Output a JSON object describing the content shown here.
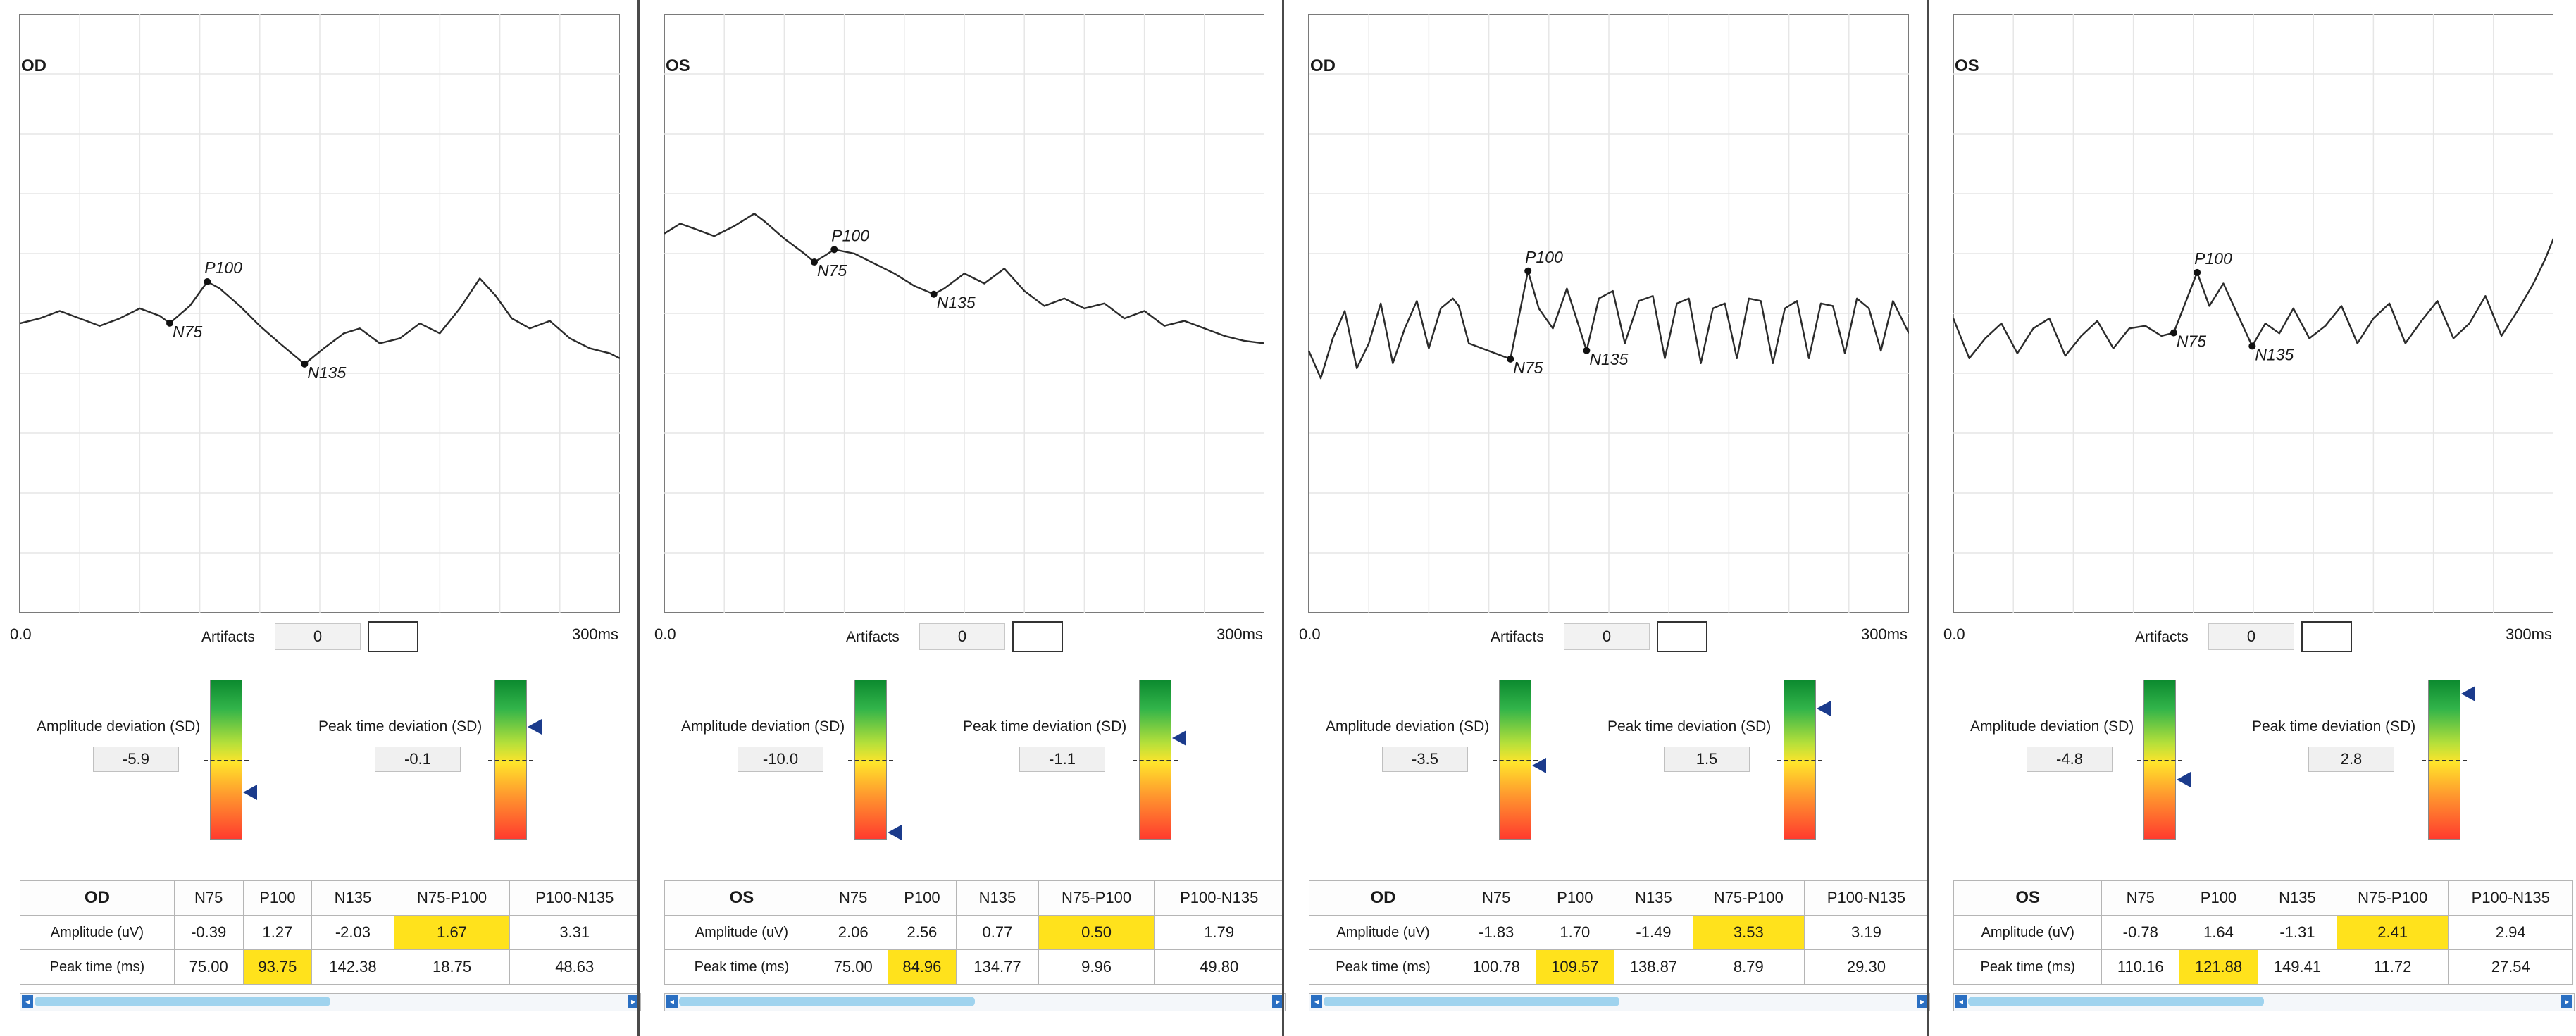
{
  "chart_data": [
    {
      "type": "line",
      "eye": "OD",
      "x_min_label": "0.0",
      "x_max_label": "300ms",
      "xlim": [
        0,
        300
      ],
      "grid": true,
      "wave": [
        [
          0,
          -0.4
        ],
        [
          10,
          -0.2
        ],
        [
          20,
          0.1
        ],
        [
          30,
          -0.2
        ],
        [
          40,
          -0.5
        ],
        [
          50,
          -0.2
        ],
        [
          60,
          0.2
        ],
        [
          70,
          -0.1
        ],
        [
          75,
          -0.39
        ],
        [
          85,
          0.3
        ],
        [
          93.75,
          1.27
        ],
        [
          100,
          1.0
        ],
        [
          110,
          0.3
        ],
        [
          120,
          -0.5
        ],
        [
          130,
          -1.2
        ],
        [
          142.38,
          -2.03
        ],
        [
          152,
          -1.4
        ],
        [
          162,
          -0.8
        ],
        [
          170,
          -0.6
        ],
        [
          180,
          -1.2
        ],
        [
          190,
          -1.0
        ],
        [
          200,
          -0.4
        ],
        [
          210,
          -0.8
        ],
        [
          220,
          0.2
        ],
        [
          230,
          1.4
        ],
        [
          238,
          0.7
        ],
        [
          246,
          -0.2
        ],
        [
          255,
          -0.6
        ],
        [
          265,
          -0.3
        ],
        [
          275,
          -1.0
        ],
        [
          285,
          -1.4
        ],
        [
          295,
          -1.6
        ],
        [
          300,
          -1.8
        ]
      ],
      "markers": [
        {
          "label": "N75",
          "x": 75,
          "y": -0.39
        },
        {
          "label": "P100",
          "x": 93.75,
          "y": 1.27
        },
        {
          "label": "N135",
          "x": 142.38,
          "y": -2.03
        }
      ],
      "artifacts_label": "Artifacts",
      "artifacts_value": "0",
      "amplitude_dev_label": "Amplitude deviation (SD)",
      "amplitude_dev_value": "-5.9",
      "amplitude_dev_level": -5.9,
      "peak_dev_label": "Peak time deviation (SD)",
      "peak_dev_value": "-0.1",
      "peak_dev_level": -0.1,
      "table": {
        "headers": [
          "OD",
          "N75",
          "P100",
          "N135",
          "N75-P100",
          "P100-N135"
        ],
        "rows": [
          {
            "label": "Amplitude (uV)",
            "cells": [
              "-0.39",
              "1.27",
              "-2.03",
              "1.67",
              "3.31"
            ],
            "highlight": [
              3
            ]
          },
          {
            "label": "Peak time (ms)",
            "cells": [
              "75.00",
              "93.75",
              "142.38",
              "18.75",
              "48.63"
            ],
            "highlight": [
              1
            ]
          }
        ]
      }
    },
    {
      "type": "line",
      "eye": "OS",
      "x_min_label": "0.0",
      "x_max_label": "300ms",
      "xlim": [
        0,
        300
      ],
      "grid": true,
      "wave": [
        [
          0,
          3.2
        ],
        [
          8,
          3.6
        ],
        [
          15,
          3.4
        ],
        [
          25,
          3.1
        ],
        [
          35,
          3.5
        ],
        [
          45,
          4.0
        ],
        [
          50,
          3.7
        ],
        [
          60,
          3.0
        ],
        [
          70,
          2.4
        ],
        [
          75,
          2.06
        ],
        [
          80,
          2.3
        ],
        [
          84.96,
          2.56
        ],
        [
          95,
          2.4
        ],
        [
          105,
          2.0
        ],
        [
          115,
          1.6
        ],
        [
          125,
          1.1
        ],
        [
          134.77,
          0.77
        ],
        [
          140,
          1.0
        ],
        [
          150,
          1.6
        ],
        [
          160,
          1.2
        ],
        [
          170,
          1.8
        ],
        [
          180,
          0.9
        ],
        [
          190,
          0.3
        ],
        [
          200,
          0.6
        ],
        [
          210,
          0.2
        ],
        [
          220,
          0.4
        ],
        [
          230,
          -0.2
        ],
        [
          240,
          0.1
        ],
        [
          250,
          -0.5
        ],
        [
          260,
          -0.3
        ],
        [
          270,
          -0.6
        ],
        [
          280,
          -0.9
        ],
        [
          290,
          -1.1
        ],
        [
          300,
          -1.2
        ]
      ],
      "markers": [
        {
          "label": "N75",
          "x": 75,
          "y": 2.06
        },
        {
          "label": "P100",
          "x": 84.96,
          "y": 2.56
        },
        {
          "label": "N135",
          "x": 134.77,
          "y": 0.77
        }
      ],
      "artifacts_label": "Artifacts",
      "artifacts_value": "0",
      "amplitude_dev_label": "Amplitude deviation (SD)",
      "amplitude_dev_value": "-10.0",
      "amplitude_dev_level": -10.0,
      "peak_dev_label": "Peak time deviation (SD)",
      "peak_dev_value": "-1.1",
      "peak_dev_level": -1.1,
      "table": {
        "headers": [
          "OS",
          "N75",
          "P100",
          "N135",
          "N75-P100",
          "P100-N135"
        ],
        "rows": [
          {
            "label": "Amplitude (uV)",
            "cells": [
              "2.06",
              "2.56",
              "0.77",
              "0.50",
              "1.79"
            ],
            "highlight": [
              3
            ]
          },
          {
            "label": "Peak time (ms)",
            "cells": [
              "75.00",
              "84.96",
              "134.77",
              "9.96",
              "49.80"
            ],
            "highlight": [
              1
            ]
          }
        ]
      }
    },
    {
      "type": "line",
      "eye": "OD",
      "x_min_label": "0.0",
      "x_max_label": "300ms",
      "xlim": [
        0,
        300
      ],
      "grid": true,
      "wave": [
        [
          0,
          -1.5
        ],
        [
          6,
          -2.6
        ],
        [
          12,
          -1.0
        ],
        [
          18,
          0.1
        ],
        [
          24,
          -2.2
        ],
        [
          30,
          -1.2
        ],
        [
          36,
          0.4
        ],
        [
          42,
          -2.0
        ],
        [
          48,
          -0.6
        ],
        [
          54,
          0.5
        ],
        [
          60,
          -1.4
        ],
        [
          66,
          0.2
        ],
        [
          72,
          0.6
        ],
        [
          75,
          0.3
        ],
        [
          80,
          -1.2
        ],
        [
          100.78,
          -1.83
        ],
        [
          109.57,
          1.7
        ],
        [
          115,
          0.2
        ],
        [
          122,
          -0.6
        ],
        [
          129,
          1.0
        ],
        [
          138.87,
          -1.49
        ],
        [
          145,
          0.6
        ],
        [
          152,
          0.9
        ],
        [
          158,
          -1.2
        ],
        [
          165,
          0.5
        ],
        [
          172,
          0.7
        ],
        [
          178,
          -1.8
        ],
        [
          184,
          0.4
        ],
        [
          190,
          0.6
        ],
        [
          196,
          -2.0
        ],
        [
          202,
          0.2
        ],
        [
          208,
          0.4
        ],
        [
          214,
          -1.8
        ],
        [
          220,
          0.6
        ],
        [
          226,
          0.5
        ],
        [
          232,
          -2.0
        ],
        [
          238,
          0.2
        ],
        [
          244,
          0.5
        ],
        [
          250,
          -1.8
        ],
        [
          256,
          0.4
        ],
        [
          262,
          0.3
        ],
        [
          268,
          -1.6
        ],
        [
          274,
          0.6
        ],
        [
          280,
          0.2
        ],
        [
          286,
          -1.5
        ],
        [
          292,
          0.5
        ],
        [
          300,
          -0.8
        ]
      ],
      "markers": [
        {
          "label": "N75",
          "x": 100.78,
          "y": -1.83
        },
        {
          "label": "P100",
          "x": 109.57,
          "y": 1.7
        },
        {
          "label": "N135",
          "x": 138.87,
          "y": -1.49
        }
      ],
      "artifacts_label": "Artifacts",
      "artifacts_value": "0",
      "amplitude_dev_label": "Amplitude deviation (SD)",
      "amplitude_dev_value": "-3.5",
      "amplitude_dev_level": -3.5,
      "peak_dev_label": "Peak time deviation (SD)",
      "peak_dev_value": "1.5",
      "peak_dev_level": 1.5,
      "table": {
        "headers": [
          "OD",
          "N75",
          "P100",
          "N135",
          "N75-P100",
          "P100-N135"
        ],
        "rows": [
          {
            "label": "Amplitude (uV)",
            "cells": [
              "-1.83",
              "1.70",
              "-1.49",
              "3.53",
              "3.19"
            ],
            "highlight": [
              3
            ]
          },
          {
            "label": "Peak time (ms)",
            "cells": [
              "100.78",
              "109.57",
              "138.87",
              "8.79",
              "29.30"
            ],
            "highlight": [
              1
            ]
          }
        ]
      }
    },
    {
      "type": "line",
      "eye": "OS",
      "x_min_label": "0.0",
      "x_max_label": "300ms",
      "xlim": [
        0,
        300
      ],
      "grid": true,
      "wave": [
        [
          0,
          -0.2
        ],
        [
          8,
          -1.8
        ],
        [
          16,
          -1.0
        ],
        [
          24,
          -0.4
        ],
        [
          32,
          -1.6
        ],
        [
          40,
          -0.6
        ],
        [
          48,
          -0.2
        ],
        [
          56,
          -1.7
        ],
        [
          64,
          -0.9
        ],
        [
          72,
          -0.3
        ],
        [
          80,
          -1.4
        ],
        [
          88,
          -0.6
        ],
        [
          96,
          -0.5
        ],
        [
          104,
          -0.9
        ],
        [
          110.16,
          -0.78
        ],
        [
          121.88,
          1.64
        ],
        [
          128,
          0.3
        ],
        [
          135,
          1.2
        ],
        [
          149.41,
          -1.31
        ],
        [
          156,
          -0.4
        ],
        [
          163,
          -0.8
        ],
        [
          170,
          0.2
        ],
        [
          178,
          -1.0
        ],
        [
          186,
          -0.5
        ],
        [
          194,
          0.3
        ],
        [
          202,
          -1.2
        ],
        [
          210,
          -0.2
        ],
        [
          218,
          0.4
        ],
        [
          226,
          -1.2
        ],
        [
          234,
          -0.3
        ],
        [
          242,
          0.5
        ],
        [
          250,
          -1.0
        ],
        [
          258,
          -0.4
        ],
        [
          266,
          0.7
        ],
        [
          274,
          -0.9
        ],
        [
          282,
          0.1
        ],
        [
          290,
          1.2
        ],
        [
          296,
          2.2
        ],
        [
          300,
          3.0
        ]
      ],
      "markers": [
        {
          "label": "N75",
          "x": 110.16,
          "y": -0.78
        },
        {
          "label": "P100",
          "x": 121.88,
          "y": 1.64
        },
        {
          "label": "N135",
          "x": 149.41,
          "y": -1.31
        }
      ],
      "artifacts_label": "Artifacts",
      "artifacts_value": "0",
      "amplitude_dev_label": "Amplitude deviation (SD)",
      "amplitude_dev_value": "-4.8",
      "amplitude_dev_level": -4.8,
      "peak_dev_label": "Peak time deviation (SD)",
      "peak_dev_value": "2.8",
      "peak_dev_level": 2.8,
      "table": {
        "headers": [
          "OS",
          "N75",
          "P100",
          "N135",
          "N75-P100",
          "P100-N135"
        ],
        "rows": [
          {
            "label": "Amplitude (uV)",
            "cells": [
              "-0.78",
              "1.64",
              "-1.31",
              "2.41",
              "2.94"
            ],
            "highlight": [
              3
            ]
          },
          {
            "label": "Peak time (ms)",
            "cells": [
              "110.16",
              "121.88",
              "149.41",
              "11.72",
              "27.54"
            ],
            "highlight": [
              1
            ]
          }
        ]
      }
    }
  ]
}
